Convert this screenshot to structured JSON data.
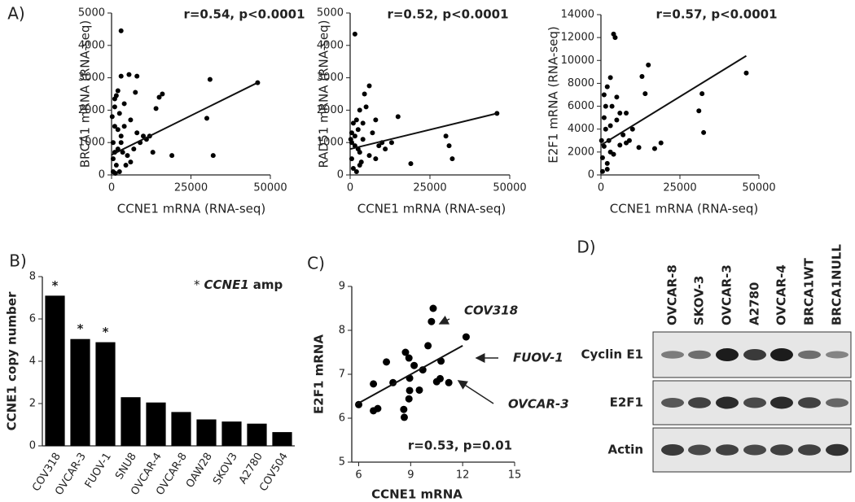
{
  "chart_data": [
    {
      "type": "scatter",
      "panel_label": "A)",
      "title": "r=0.54, p<0.0001",
      "x_label": "CCNE1 mRNA (RNA-seq)",
      "y_label": "BRCA1 mRNA (RNA-seq)",
      "xlim": [
        0,
        50000
      ],
      "xticks": [
        0,
        25000,
        50000
      ],
      "ylim": [
        0,
        5000
      ],
      "yticks": [
        0,
        1000,
        2000,
        3000,
        4000,
        5000
      ],
      "color": "#000000",
      "x": [
        3000,
        46000,
        31000,
        32000,
        30000,
        19000,
        15000,
        16000,
        14000,
        12000,
        10000,
        8000,
        7500,
        5500,
        3000,
        2000,
        1500,
        1000,
        1000,
        2500,
        4000,
        6000,
        8000,
        9000,
        11000,
        13000,
        7000,
        5000,
        3000,
        2000,
        1000,
        500,
        500,
        1500,
        2500,
        500,
        3500,
        4500,
        6000,
        1000,
        200,
        3000,
        2000,
        4000,
        1200
      ],
      "values": [
        4450,
        2850,
        2950,
        600,
        1750,
        600,
        2400,
        2500,
        2050,
        1200,
        1200,
        3050,
        2550,
        3100,
        3050,
        2600,
        2450,
        2350,
        2100,
        1900,
        1500,
        1700,
        1300,
        1000,
        1100,
        700,
        800,
        600,
        1200,
        800,
        1500,
        1000,
        500,
        300,
        100,
        100,
        700,
        300,
        400,
        700,
        1800,
        1000,
        1400,
        2200,
        50
      ],
      "fit": {
        "x": [
          0,
          46000
        ],
        "values": [
          620,
          2850
        ]
      }
    },
    {
      "type": "scatter",
      "title": "r=0.52, p<0.0001",
      "x_label": "CCNE1 mRNA (RNA-seq)",
      "y_label": "RAD51 mRNA (RNA-seq)",
      "xlim": [
        0,
        50000
      ],
      "xticks": [
        0,
        25000,
        50000
      ],
      "ylim": [
        0,
        5000
      ],
      "yticks": [
        0,
        1000,
        2000,
        3000,
        4000,
        5000
      ],
      "color": "#000000",
      "x": [
        1500,
        46000,
        32000,
        30000,
        31000,
        19000,
        15000,
        13000,
        10000,
        8000,
        6000,
        4500,
        5000,
        3000,
        2000,
        1000,
        500,
        2500,
        4000,
        7000,
        9000,
        11000,
        6000,
        3000,
        1500,
        500,
        1000,
        2000,
        3500,
        500,
        1500,
        2500,
        4000,
        8000,
        200,
        3000
      ],
      "values": [
        4350,
        1900,
        500,
        1200,
        900,
        350,
        1800,
        1000,
        1000,
        1700,
        2750,
        2500,
        2100,
        2000,
        1700,
        1600,
        1300,
        1400,
        1100,
        1300,
        900,
        800,
        600,
        700,
        900,
        500,
        200,
        100,
        400,
        1000,
        1200,
        800,
        1600,
        500,
        1100,
        300
      ],
      "fit": {
        "x": [
          0,
          46000
        ],
        "values": [
          800,
          1900
        ]
      }
    },
    {
      "type": "scatter",
      "title": "r=0.57, p<0.0001",
      "x_label": "CCNE1 mRNA (RNA-seq)",
      "y_label": "E2F1 mRNA (RNA-seq)",
      "xlim": [
        0,
        50000
      ],
      "xticks": [
        0,
        25000,
        50000
      ],
      "ylim": [
        0,
        14000
      ],
      "yticks": [
        0,
        2000,
        4000,
        6000,
        8000,
        10000,
        12000,
        14000
      ],
      "color": "#000000",
      "x": [
        4000,
        4500,
        46000,
        31000,
        32000,
        32500,
        15000,
        13000,
        14000,
        19000,
        17000,
        12000,
        10000,
        8000,
        8000,
        6000,
        5000,
        3000,
        2000,
        1500,
        1000,
        3000,
        2500,
        1000,
        500,
        2000,
        500,
        4000,
        6000,
        3500,
        1500,
        7000,
        2000,
        200,
        5000,
        1000,
        9000,
        3000
      ],
      "values": [
        12300,
        12000,
        8900,
        5600,
        7100,
        3700,
        9600,
        8600,
        7100,
        2800,
        2300,
        2400,
        4000,
        5400,
        2800,
        5400,
        6800,
        8500,
        7700,
        6000,
        5000,
        4300,
        3000,
        2500,
        1500,
        1000,
        300,
        1800,
        2600,
        6000,
        4000,
        3500,
        500,
        3000,
        4800,
        7000,
        3000,
        2000
      ],
      "fit": {
        "x": [
          0,
          46000
        ],
        "values": [
          2600,
          10400
        ]
      }
    },
    {
      "type": "bar",
      "panel_label": "B)",
      "y_label": "CCNE1 copy number",
      "note": [
        "*",
        "CCNE1",
        "amp"
      ],
      "categories": [
        "COV318",
        "OVCAR-3",
        "FUOV-1",
        "SNU8",
        "OVCAR-4",
        "OVCAR-8",
        "OAW28",
        "SKOV3",
        "A2780",
        "COV504"
      ],
      "values": [
        7.1,
        5.05,
        4.9,
        2.3,
        2.05,
        1.6,
        1.25,
        1.15,
        1.05,
        0.65
      ],
      "markers": [
        "*",
        "*",
        "*",
        null,
        null,
        null,
        null,
        null,
        null,
        null
      ],
      "ylim": [
        0,
        8
      ],
      "yticks": [
        0,
        2,
        4,
        6,
        8
      ],
      "color": "#000000"
    },
    {
      "type": "scatter",
      "panel_label": "C)",
      "title": "r=0.53, p=0.01",
      "x_label": "CCNE1 mRNA",
      "y_label": "E2F1 mRNA",
      "xlim": [
        5.6,
        15
      ],
      "xticks": [
        6,
        9,
        12,
        15
      ],
      "ylim": [
        5,
        9
      ],
      "yticks": [
        5,
        6,
        7,
        8,
        9
      ],
      "color": "#000000",
      "x": [
        6.0,
        6.85,
        7.1,
        6.85,
        7.6,
        7.98,
        8.63,
        8.6,
        8.7,
        8.9,
        8.94,
        8.9,
        8.94,
        9.2,
        9.7,
        9.5,
        10.0,
        10.2,
        10.3,
        10.75,
        10.7,
        10.5,
        11.2,
        12.2
      ],
      "values": [
        6.31,
        6.17,
        6.22,
        6.78,
        7.28,
        6.81,
        6.02,
        6.2,
        7.5,
        7.37,
        6.63,
        6.44,
        6.91,
        7.2,
        7.1,
        6.64,
        7.65,
        8.2,
        8.5,
        7.3,
        6.9,
        6.83,
        6.81,
        7.85
      ],
      "fit": {
        "x": [
          5.8,
          12
        ],
        "values": [
          6.3,
          7.65
        ]
      },
      "callouts": [
        "COV318",
        "FUOV-1",
        "OVCAR-3"
      ]
    }
  ],
  "blot": {
    "panel_label": "D)",
    "lanes": [
      "OVCAR-8",
      "SKOV-3",
      "OVCAR-3",
      "A2780",
      "OVCAR-4",
      "BRCA1WT",
      "BRCA1NULL"
    ],
    "rows": [
      "Cyclin E1",
      "E2F1",
      "Actin"
    ]
  }
}
